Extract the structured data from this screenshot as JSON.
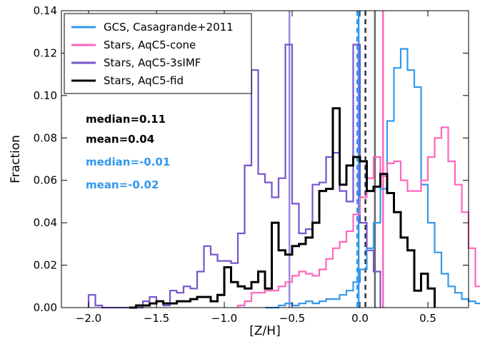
{
  "chart_data": {
    "type": "histogram",
    "xlabel": "[Z/H]",
    "ylabel": "Fraction",
    "xlim": [
      -2.2,
      0.8
    ],
    "ylim": [
      0,
      0.14
    ],
    "x_ticks": [
      -2.0,
      -1.5,
      -1.0,
      -0.5,
      0.0,
      0.5
    ],
    "x_tick_labels": [
      "−2.0",
      "−1.5",
      "−1.0",
      "−0.5",
      "0.0",
      "0.5"
    ],
    "y_ticks": [
      0.0,
      0.02,
      0.04,
      0.06,
      0.08,
      0.1,
      0.12,
      0.14
    ],
    "y_tick_labels": [
      "0.00",
      "0.02",
      "0.04",
      "0.06",
      "0.08",
      "0.10",
      "0.12",
      "0.14"
    ],
    "grid": false,
    "legend_position": "top-left",
    "bin_width": 0.05,
    "series": [
      {
        "name": "GCS, Casagrande+2011",
        "color": "#3399ee",
        "style": "step",
        "bin_start": -0.7,
        "values": [
          0.0,
          0.0,
          0.001,
          0.002,
          0.001,
          0.002,
          0.003,
          0.002,
          0.003,
          0.004,
          0.004,
          0.006,
          0.008,
          0.012,
          0.018,
          0.028,
          0.04,
          0.056,
          0.088,
          0.113,
          0.122,
          0.112,
          0.104,
          0.058,
          0.04,
          0.026,
          0.016,
          0.01,
          0.007,
          0.004,
          0.003,
          0.002,
          0.001
        ]
      },
      {
        "name": "Stars, AqC5-cone",
        "color": "#ff66bb",
        "style": "step",
        "bin_start": -0.9,
        "values": [
          0.001,
          0.003,
          0.007,
          0.007,
          0.008,
          0.008,
          0.01,
          0.012,
          0.015,
          0.017,
          0.016,
          0.015,
          0.018,
          0.023,
          0.028,
          0.031,
          0.036,
          0.044,
          0.052,
          0.061,
          0.071,
          0.062,
          0.068,
          0.069,
          0.06,
          0.055,
          0.055,
          0.06,
          0.071,
          0.08,
          0.085,
          0.069,
          0.058,
          0.045,
          0.028,
          0.01
        ]
      },
      {
        "name": "Stars, AqC5-3sIMF",
        "color": "#7755cc",
        "style": "step",
        "bin_start": -2.0,
        "values": [
          0.006,
          0.001,
          0.0,
          0.0,
          0.0,
          0.0,
          0.0,
          0.0,
          0.003,
          0.005,
          0.003,
          0.001,
          0.008,
          0.007,
          0.01,
          0.009,
          0.017,
          0.029,
          0.025,
          0.022,
          0.022,
          0.021,
          0.035,
          0.067,
          0.112,
          0.063,
          0.059,
          0.052,
          0.061,
          0.124,
          0.049,
          0.035,
          0.037,
          0.058,
          0.059,
          0.071,
          0.073,
          0.055,
          0.05,
          0.124,
          0.04,
          0.027,
          0.017
        ]
      },
      {
        "name": "Stars, AqC5-fid",
        "color": "#000000",
        "style": "step",
        "bin_start": -1.7,
        "values": [
          0.0,
          0.001,
          0.001,
          0.002,
          0.003,
          0.002,
          0.002,
          0.003,
          0.003,
          0.004,
          0.005,
          0.005,
          0.003,
          0.006,
          0.019,
          0.012,
          0.01,
          0.009,
          0.012,
          0.017,
          0.009,
          0.04,
          0.027,
          0.025,
          0.029,
          0.03,
          0.033,
          0.04,
          0.055,
          0.056,
          0.094,
          0.058,
          0.067,
          0.071,
          0.069,
          0.055,
          0.057,
          0.063,
          0.054,
          0.045,
          0.033,
          0.027,
          0.008,
          0.016,
          0.009
        ]
      }
    ],
    "vertical_lines": [
      {
        "x": 0.11,
        "color": "#666666",
        "style": "solid"
      },
      {
        "x": 0.04,
        "color": "#333333",
        "style": "dashed"
      },
      {
        "x": -0.01,
        "color": "#3399ee",
        "style": "solid"
      },
      {
        "x": -0.02,
        "color": "#3399ee",
        "style": "dashed"
      },
      {
        "x": 0.17,
        "color": "#ff66bb",
        "style": "solid"
      },
      {
        "x": -0.52,
        "color": "#9988dd",
        "style": "solid"
      }
    ],
    "annotations": [
      {
        "text": "median=0.11",
        "color": "#000000"
      },
      {
        "text": "mean=0.04",
        "color": "#000000"
      },
      {
        "text": "median=-0.01",
        "color": "#3399ee"
      },
      {
        "text": "mean=-0.02",
        "color": "#3399ee"
      }
    ]
  }
}
